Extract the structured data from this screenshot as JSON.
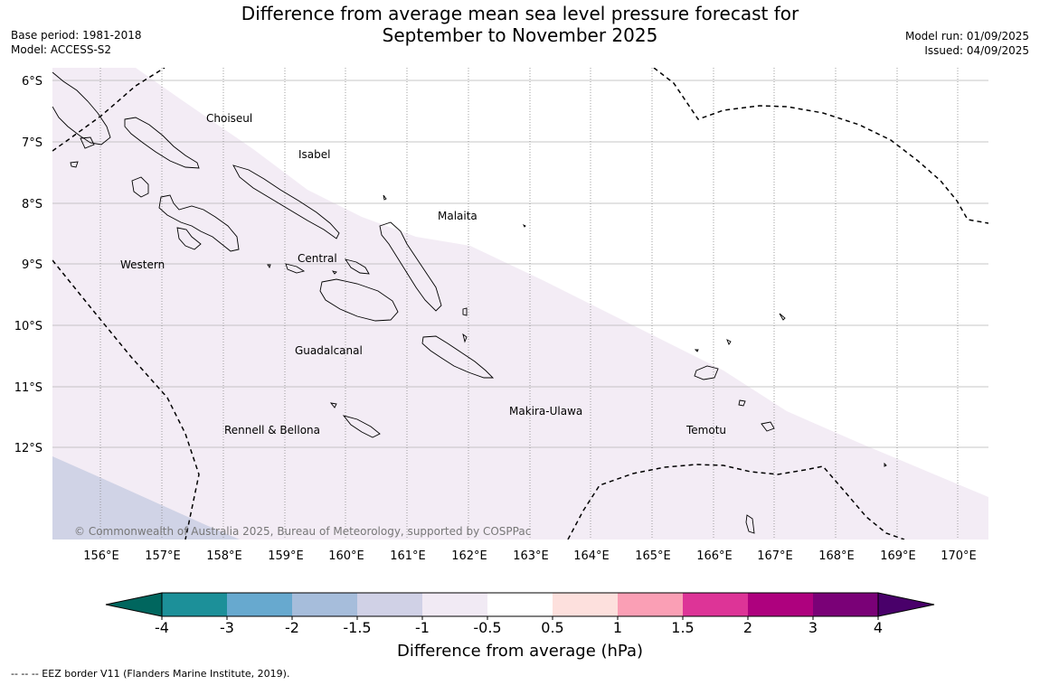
{
  "header": {
    "title_line1": "Difference from average mean sea level pressure forecast for",
    "title_line2": "September to November 2025",
    "base_period": "Base period: 1981-2018",
    "model": "Model: ACCESS-S2",
    "model_run": "Model run: 01/09/2025",
    "issued": "Issued: 04/09/2025"
  },
  "map": {
    "lat_labels": [
      "6°S",
      "7°S",
      "8°S",
      "9°S",
      "10°S",
      "11°S",
      "12°S"
    ],
    "lon_labels": [
      "156°E",
      "157°E",
      "158°E",
      "159°E",
      "160°E",
      "161°E",
      "162°E",
      "163°E",
      "164°E",
      "165°E",
      "166°E",
      "167°E",
      "168°E",
      "169°E",
      "170°E"
    ],
    "province_labels": [
      "Choiseul",
      "Isabel",
      "Malaita",
      "Central",
      "Western",
      "Guadalcanal",
      "Makira-Ulawa",
      "Rennell & Bellona",
      "Temotu"
    ],
    "copyright": "© Commonwealth of Australia 2025, Bureau of Meteorology, supported by COSPPac"
  },
  "colorbar": {
    "tick_labels": [
      "-4",
      "-3",
      "-2",
      "-1.5",
      "-1",
      "-0.5",
      "0.5",
      "1",
      "1.5",
      "2",
      "3",
      "4"
    ],
    "colors": [
      "#00665e",
      "#1c9099",
      "#67a9cf",
      "#a6bddb",
      "#d0d1e6",
      "#f1eaf4",
      "#ffffff",
      "#fde0dd",
      "#fa9fb5",
      "#dd3497",
      "#ae017e",
      "#7a0177",
      "#49006a"
    ],
    "label": "Difference from average (hPa)"
  },
  "footer": {
    "eez_note": "--  --  -- EEZ border V11 (Flanders Marine Institute, 2019)."
  }
}
